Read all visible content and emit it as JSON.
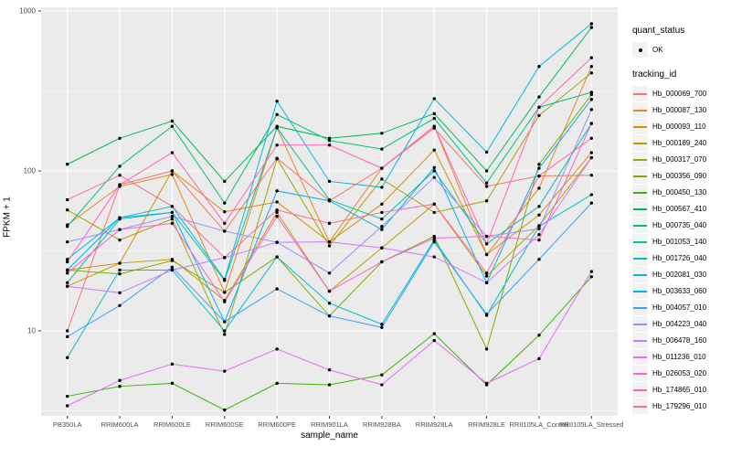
{
  "chart_data": {
    "type": "line",
    "title": "",
    "xlabel": "sample_name",
    "ylabel": "FPKM + 1",
    "y_scale": "log10",
    "ylim": [
      2.94,
      1050
    ],
    "y_ticks": [
      10,
      100,
      1000
    ],
    "y_minor_ticks": [
      3.162,
      31.62,
      316.2
    ],
    "grid": "on",
    "legend_position": "right",
    "point_color": "#000000",
    "categories": [
      "PB350LA",
      "RRIM600LA",
      "RRIM600LE",
      "RRIM600SE",
      "RRIM600PE",
      "RRIM901LA",
      "RRIM928BA",
      "RRIM928LA",
      "RRIM928LE",
      "RRII105LA_Control",
      "RRII105LA_Stressed"
    ],
    "series": [
      {
        "name": "Hb_000069_700",
        "color": "#F8766D",
        "values": [
          10,
          82,
          100,
          42,
          120,
          65,
          104,
          185,
          80,
          93,
          94
        ]
      },
      {
        "name": "Hb_000087_130",
        "color": "#E88526",
        "values": [
          46,
          80,
          95,
          17.4,
          186,
          36,
          104,
          190,
          30,
          78,
          450
        ]
      },
      {
        "name": "Hb_000093_110",
        "color": "#D89000",
        "values": [
          24,
          26.5,
          100,
          55.5,
          64,
          36,
          62,
          135,
          30,
          53,
          130
        ]
      },
      {
        "name": "Hb_000189_240",
        "color": "#C09B00",
        "values": [
          19,
          26.5,
          28,
          15.5,
          55,
          17.7,
          33,
          62,
          22,
          45.5,
          121
        ]
      },
      {
        "name": "Hb_000317_070",
        "color": "#A3A500",
        "values": [
          57,
          37,
          50,
          9.5,
          119,
          34,
          89,
          55,
          65,
          222,
          410
        ]
      },
      {
        "name": "Hb_000356_090",
        "color": "#7CAE00",
        "values": [
          24,
          22.7,
          27.5,
          17.4,
          29,
          12.4,
          27,
          39,
          7.7,
          110,
          300
        ]
      },
      {
        "name": "Hb_000450_130",
        "color": "#39B600",
        "values": [
          3.9,
          4.5,
          4.7,
          3.2,
          4.7,
          4.6,
          5.3,
          9.6,
          4.6,
          9.4,
          21.8
        ]
      },
      {
        "name": "Hb_000567_410",
        "color": "#00BB4E",
        "values": [
          110,
          160,
          205,
          86,
          190,
          160,
          172,
          228,
          100,
          290,
          788
        ]
      },
      {
        "name": "Hb_000735_040",
        "color": "#00BF7D",
        "values": [
          45,
          107,
          190,
          63,
          225,
          155,
          137,
          213,
          84,
          250,
          310
        ]
      },
      {
        "name": "Hb_001053_140",
        "color": "#00C1A3",
        "values": [
          20,
          50,
          55,
          20.7,
          186,
          66,
          50,
          100,
          35,
          60,
          198
        ]
      },
      {
        "name": "Hb_001726_040",
        "color": "#00BFC4",
        "values": [
          6.8,
          24,
          24,
          10,
          29,
          14.9,
          11,
          37,
          12.5,
          45,
          71
        ]
      },
      {
        "name": "Hb_002081_030",
        "color": "#00BAE0",
        "values": [
          28,
          51,
          60,
          21,
          273,
          86,
          79,
          283,
          131,
          450,
          832
        ]
      },
      {
        "name": "Hb_003633_060",
        "color": "#00B0F6",
        "values": [
          24,
          51,
          55,
          11.4,
          75,
          65,
          43,
          105,
          20,
          104,
          280
        ]
      },
      {
        "name": "Hb_004057_010",
        "color": "#35A2FF",
        "values": [
          9.2,
          14.4,
          25,
          11.4,
          18.3,
          12.4,
          10.5,
          36,
          12.7,
          28,
          63
        ]
      },
      {
        "name": "Hb_004223_040",
        "color": "#9590FF",
        "values": [
          36,
          43,
          52,
          42,
          35.8,
          23,
          45,
          91,
          39,
          43.5,
          242
        ]
      },
      {
        "name": "Hb_006478_160",
        "color": "#C77CFF",
        "values": [
          19,
          17.3,
          24,
          28.7,
          35.8,
          36,
          33,
          29,
          20,
          40,
          121
        ]
      },
      {
        "name": "Hb_011236_010",
        "color": "#E76BF3",
        "values": [
          3.4,
          4.9,
          6.2,
          5.6,
          7.7,
          5.7,
          4.6,
          8.7,
          4.7,
          6.7,
          23.5
        ]
      },
      {
        "name": "Hb_026053_020",
        "color": "#FA62DB",
        "values": [
          23,
          43,
          47,
          15.2,
          52,
          17.7,
          27,
          38,
          39,
          37,
          198
        ]
      },
      {
        "name": "Hb_174865_010",
        "color": "#FF62BC",
        "values": [
          27,
          82,
          130,
          47,
          145,
          145,
          104,
          190,
          35,
          250,
          510
        ]
      },
      {
        "name": "Hb_179296_010",
        "color": "#FF6A98",
        "values": [
          66,
          94,
          60,
          28.7,
          57,
          47,
          55,
          62,
          23,
          93,
          160
        ]
      }
    ]
  },
  "legend": {
    "quant_status_title": "quant_status",
    "quant_status_items": [
      {
        "label": "OK",
        "marker": "point"
      }
    ],
    "tracking_title": "tracking_id"
  },
  "colors": {
    "panel_bg": "#EBEBEB",
    "grid_major": "#FFFFFF",
    "grid_minor": "#FFFFFF",
    "axis_text": "#4D4D4D",
    "tick_mark": "#333333",
    "legend_key_bg": "#F2F2F2",
    "point": "#000000"
  }
}
